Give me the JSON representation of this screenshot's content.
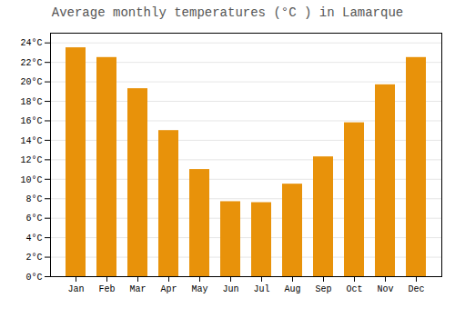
{
  "chart_data": {
    "type": "bar",
    "title": "Average monthly temperatures (°C ) in Lamarque",
    "categories": [
      "Jan",
      "Feb",
      "Mar",
      "Apr",
      "May",
      "Jun",
      "Jul",
      "Aug",
      "Sep",
      "Oct",
      "Nov",
      "Dec"
    ],
    "values": [
      23.5,
      22.5,
      19.3,
      15.0,
      11.0,
      7.7,
      7.6,
      9.5,
      12.3,
      15.8,
      19.7,
      22.5
    ],
    "color": "#E8920A",
    "ylim": [
      0,
      25
    ],
    "yticks": [
      {
        "value": 0,
        "label": "0°C"
      },
      {
        "value": 2,
        "label": "2°C"
      },
      {
        "value": 4,
        "label": "4°C"
      },
      {
        "value": 6,
        "label": "6°C"
      },
      {
        "value": 8,
        "label": "8°C"
      },
      {
        "value": 10,
        "label": "10°C"
      },
      {
        "value": 12,
        "label": "12°C"
      },
      {
        "value": 14,
        "label": "14°C"
      },
      {
        "value": 16,
        "label": "16°C"
      },
      {
        "value": 18,
        "label": "18°C"
      },
      {
        "value": 20,
        "label": "20°C"
      },
      {
        "value": 22,
        "label": "22°C"
      },
      {
        "value": 24,
        "label": "24°C"
      }
    ],
    "grid": true
  }
}
